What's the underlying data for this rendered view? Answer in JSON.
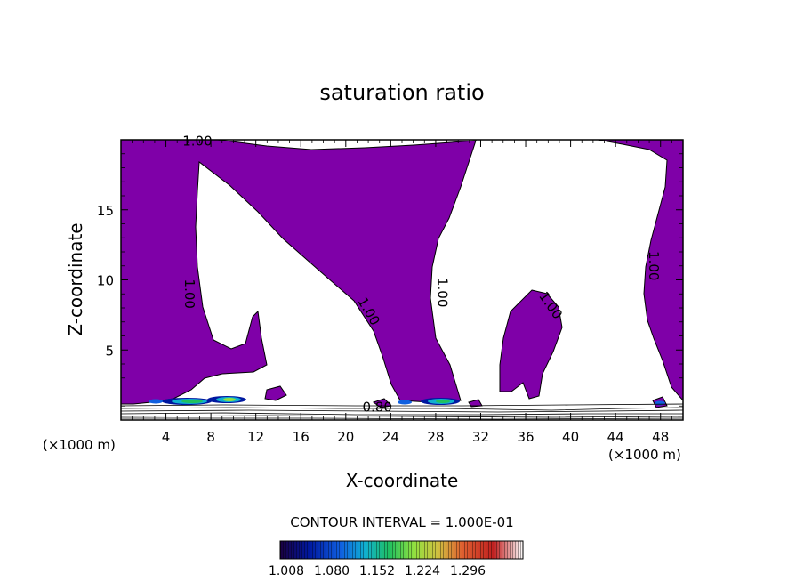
{
  "chart_data": {
    "type": "heatmap",
    "title": "saturation ratio",
    "xlabel": "X-coordinate",
    "ylabel": "Z-coordinate",
    "x_unit_left": "(×1000 m)",
    "x_unit_right": "(×1000 m)",
    "xlim": [
      0,
      50
    ],
    "ylim": [
      0,
      20
    ],
    "xticks": [
      4,
      8,
      12,
      16,
      20,
      24,
      28,
      32,
      36,
      40,
      44,
      48
    ],
    "yticks": [
      5,
      10,
      15
    ],
    "contour_interval_text": "CONTOUR INTERVAL = 1.000E-01",
    "colorbar": {
      "range": [
        1.0,
        1.35
      ],
      "tick_labels": [
        "1.008",
        "1.080",
        "1.152",
        "1.224",
        "1.296"
      ],
      "colors": [
        "#1a0040",
        "#0018a0",
        "#1060e0",
        "#10b0d0",
        "#20c060",
        "#90e040",
        "#d0c040",
        "#e06030",
        "#c02020",
        "#ffffff"
      ]
    },
    "contour_labels": [
      {
        "text": "1.00",
        "x": 6.8,
        "z": 19.6
      },
      {
        "text": "1.00",
        "x": 5.7,
        "z": 9.0
      },
      {
        "text": "1.00",
        "x": 21.7,
        "z": 7.6
      },
      {
        "text": "1.00",
        "x": 28.2,
        "z": 9.1
      },
      {
        "text": "1.00",
        "x": 37.9,
        "z": 8.0
      },
      {
        "text": "1.00",
        "x": 47.0,
        "z": 11.0
      },
      {
        "text": "0.80",
        "x": 22.8,
        "z": 0.6
      }
    ],
    "colors": {
      "supersaturated_fill": "#7f00a8",
      "contour_line": "#000000"
    }
  }
}
